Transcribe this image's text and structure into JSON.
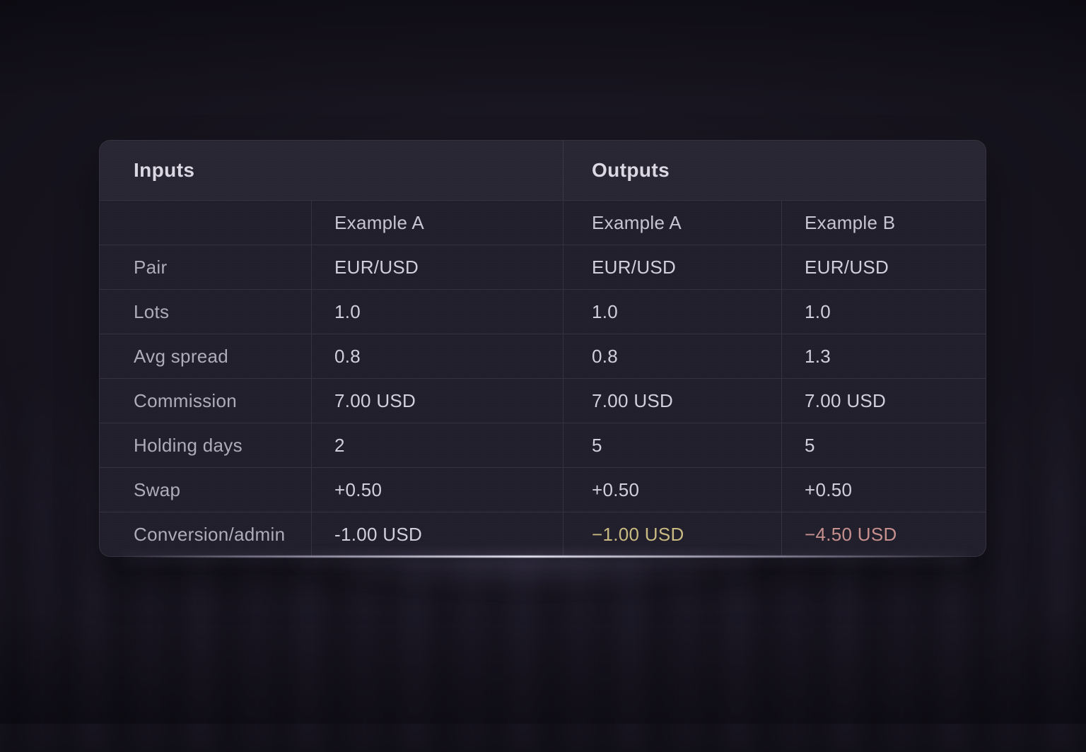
{
  "table": {
    "section_headers": [
      "Inputs",
      "Outputs"
    ],
    "column_headers": [
      "Example A",
      "Example A",
      "Example B"
    ],
    "rows": [
      {
        "label": "Pair",
        "values": [
          "EUR/USD",
          "EUR/USD",
          "EUR/USD"
        ]
      },
      {
        "label": "Lots",
        "values": [
          "1.0",
          "1.0",
          "1.0"
        ]
      },
      {
        "label": "Avg spread",
        "values": [
          "0.8",
          "0.8",
          "1.3"
        ]
      },
      {
        "label": "Commission",
        "values": [
          "7.00 USD",
          "7.00 USD",
          "7.00 USD"
        ]
      },
      {
        "label": "Holding days",
        "values": [
          "2",
          "5",
          "5"
        ]
      },
      {
        "label": "Swap",
        "values": [
          "+0.50",
          "+0.50",
          "+0.50"
        ]
      },
      {
        "label": "Conversion/admin",
        "values": [
          "-1.00 USD",
          "−1.00 USD",
          "−4.50 USD"
        ]
      }
    ],
    "highlight_colors": {
      "output_a_conversion": "#c8ba80",
      "output_b_conversion": "#c6908e"
    }
  },
  "colors": {
    "card_background": "#221f2c",
    "page_background": "#131019",
    "value_text": "#d2cfdc",
    "label_text": "#aeabbb"
  },
  "chart_data": {
    "type": "table",
    "title": "Inputs vs Outputs comparison",
    "sections": [
      "Inputs",
      "Outputs"
    ],
    "columns": [
      "Inputs — Example A",
      "Outputs — Example A",
      "Outputs — Example B"
    ],
    "row_labels": [
      "Pair",
      "Lots",
      "Avg spread",
      "Commission",
      "Holding days",
      "Swap",
      "Conversion/admin"
    ],
    "cells": [
      [
        "EUR/USD",
        "EUR/USD",
        "EUR/USD"
      ],
      [
        "1.0",
        "1.0",
        "1.0"
      ],
      [
        "0.8",
        "0.8",
        "1.3"
      ],
      [
        "7.00 USD",
        "7.00 USD",
        "7.00 USD"
      ],
      [
        "2",
        "5",
        "5"
      ],
      [
        "+0.50",
        "+0.50",
        "+0.50"
      ],
      [
        "-1.00 USD",
        "-1.00 USD",
        "-4.50 USD"
      ]
    ],
    "highlighted_cells": [
      {
        "row": "Conversion/admin",
        "column": "Outputs — Example A",
        "value": "-1.00 USD",
        "color": "#c8ba80"
      },
      {
        "row": "Conversion/admin",
        "column": "Outputs — Example B",
        "value": "-4.50 USD",
        "color": "#c6908e"
      }
    ]
  }
}
